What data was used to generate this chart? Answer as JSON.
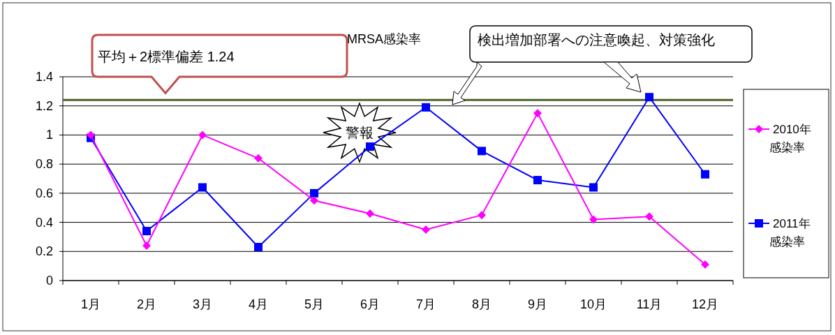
{
  "chart_data": {
    "type": "line",
    "title": "MRSA感染率",
    "categories": [
      "1月",
      "2月",
      "3月",
      "4月",
      "5月",
      "6月",
      "7月",
      "8月",
      "9月",
      "10月",
      "11月",
      "12月"
    ],
    "series": [
      {
        "name": "2010年感染率",
        "color": "#ff00ff",
        "marker": "diamond",
        "values": [
          1.0,
          0.24,
          1.0,
          0.84,
          0.55,
          0.46,
          0.35,
          0.45,
          1.15,
          0.42,
          0.44,
          0.11
        ]
      },
      {
        "name": "2011年感染率",
        "color": "#0000ff",
        "marker": "square",
        "values": [
          0.98,
          0.34,
          0.64,
          0.23,
          0.6,
          0.92,
          1.19,
          0.89,
          0.69,
          0.64,
          1.26,
          0.73
        ]
      }
    ],
    "ylim": [
      0,
      1.4
    ],
    "yticks": [
      0,
      0.2,
      0.4,
      0.6,
      0.8,
      1,
      1.2,
      1.4
    ],
    "grid": "y",
    "legend": "right",
    "ref_lines": [
      {
        "axis": "y",
        "value": 1.24,
        "label": "平均＋2標準偏差  1.24",
        "color": "#4f6228"
      }
    ],
    "annotations": [
      "検出増加部署への注意喚起、対策強化",
      "警報"
    ]
  }
}
